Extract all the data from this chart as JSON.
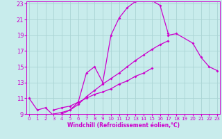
{
  "xlabel": "Windchill (Refroidissement éolien,°C)",
  "bg_color": "#c8ecec",
  "grid_color": "#aad4d4",
  "line_color": "#cc00cc",
  "x_min": 0,
  "x_max": 23,
  "y_min": 9,
  "y_max": 23,
  "curve1_x": [
    0,
    1,
    2,
    3,
    4,
    5,
    6,
    7,
    8,
    9,
    10,
    11,
    12,
    13,
    14,
    15,
    16,
    17,
    18,
    19,
    20,
    21,
    22,
    23
  ],
  "curve1_y": [
    11.0,
    9.5,
    9.8,
    8.8,
    9.0,
    9.5,
    10.5,
    14.2,
    15.0,
    13.0,
    19.0,
    21.2,
    22.5,
    23.3,
    23.4,
    23.4,
    22.8,
    19.2,
    null,
    null,
    null,
    null,
    null,
    null
  ],
  "curve2_x": [
    0,
    1,
    2,
    3,
    4,
    5,
    6,
    7,
    8,
    9,
    10,
    11,
    12,
    13,
    14,
    15,
    16,
    17,
    18,
    19,
    20,
    21,
    22,
    23
  ],
  "curve2_y": [
    null,
    null,
    null,
    null,
    null,
    null,
    null,
    null,
    null,
    null,
    null,
    null,
    null,
    null,
    null,
    null,
    null,
    19.0,
    19.2,
    null,
    18.0,
    16.2,
    15.0,
    14.5
  ],
  "curve3_x": [
    3,
    4,
    5,
    6,
    7,
    8,
    9,
    10,
    11,
    12,
    13,
    14,
    15,
    16,
    17,
    18,
    19,
    20,
    21,
    22,
    23
  ],
  "curve3_y": [
    9.0,
    9.2,
    9.5,
    10.2,
    11.2,
    12.0,
    12.8,
    13.5,
    14.2,
    15.0,
    15.8,
    16.5,
    17.2,
    17.8,
    18.3,
    null,
    null,
    null,
    null,
    null,
    null
  ],
  "curve4_x": [
    3,
    4,
    5,
    6,
    7,
    8,
    9,
    10,
    11,
    12,
    13,
    14,
    15,
    16,
    17,
    18,
    19,
    20,
    21,
    22,
    23
  ],
  "curve4_y": [
    9.5,
    9.8,
    10.0,
    10.5,
    11.0,
    11.5,
    11.8,
    12.2,
    12.8,
    13.2,
    13.8,
    14.2,
    14.8,
    null,
    null,
    null,
    null,
    null,
    null,
    null,
    null
  ]
}
